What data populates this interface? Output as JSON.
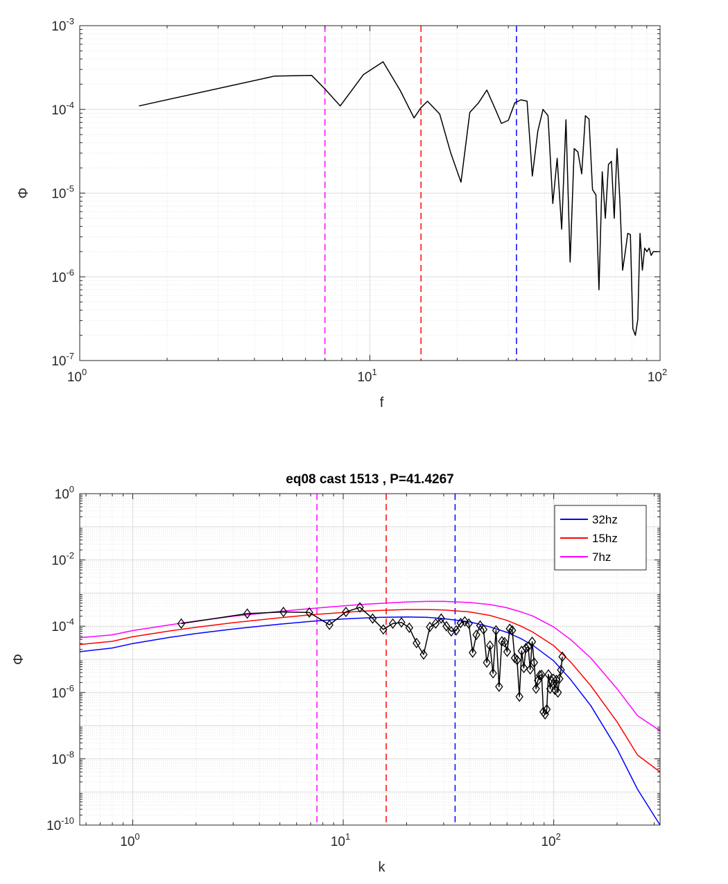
{
  "chart_data": [
    {
      "type": "line",
      "title": "",
      "xlabel": "f",
      "ylabel": "Φ",
      "xscale": "log",
      "yscale": "log",
      "xlim": [
        1,
        100
      ],
      "ylim": [
        1e-07,
        0.001
      ],
      "grid": true,
      "x_ticks": [
        {
          "base": "10",
          "exp": "0"
        },
        {
          "base": "10",
          "exp": "1"
        },
        {
          "base": "10",
          "exp": "2"
        }
      ],
      "y_ticks": [
        {
          "base": "10",
          "exp": "-7"
        },
        {
          "base": "10",
          "exp": "-6"
        },
        {
          "base": "10",
          "exp": "-5"
        },
        {
          "base": "10",
          "exp": "-4"
        },
        {
          "base": "10",
          "exp": "-3"
        }
      ],
      "vlines": [
        {
          "x": 7.0,
          "color": "#ff00ff",
          "style": "dashed"
        },
        {
          "x": 15.0,
          "color": "#ff0000",
          "style": "dashed"
        },
        {
          "x": 32.0,
          "color": "#0000ff",
          "style": "dashed"
        }
      ],
      "series": [
        {
          "color": "#000000",
          "x": [
            1.6,
            4.7,
            6.3,
            7.0,
            7.9,
            9.5,
            11.1,
            12.7,
            14.2,
            15.0,
            15.8,
            17.4,
            19.0,
            20.6,
            22.1,
            23.7,
            25.3,
            26.9,
            28.4,
            30.0,
            31.6,
            33.2,
            34.8,
            36.3,
            37.9,
            39.5,
            41.1,
            42.7,
            44.2,
            45.8,
            47.4,
            49.0,
            50.6,
            52.1,
            53.7,
            55.3,
            56.9,
            58.5,
            60.1,
            61.6,
            63.2,
            64.8,
            66.4,
            68.0,
            69.5,
            71.1,
            72.7,
            74.3,
            75.9,
            77.4,
            79.0,
            80.6,
            82.2,
            83.8,
            85.3,
            86.9,
            88.5,
            90.1,
            91.7,
            93.2,
            94.8,
            96.4,
            98.0,
            99.6,
            100
          ],
          "y": [
            0.00011,
            0.00025,
            0.000255,
            0.000175,
            0.00011,
            0.00026,
            0.00037,
            0.00017,
            7.9e-05,
            0.000105,
            0.000125,
            8.8e-05,
            3e-05,
            1.35e-05,
            9.2e-05,
            0.00012,
            0.00017,
            0.000105,
            6.8e-05,
            7.4e-05,
            0.00012,
            0.00013,
            0.000125,
            1.6e-05,
            5.5e-05,
            0.0001,
            8.4e-05,
            7.5e-06,
            2.6e-05,
            3.7e-06,
            7.5e-05,
            1.5e-06,
            3.4e-05,
            3.1e-05,
            1.7e-05,
            8.4e-05,
            7.7e-05,
            1.1e-05,
            9.5e-06,
            7e-07,
            1.8e-05,
            5e-06,
            2.2e-05,
            2.4e-05,
            5e-06,
            3.4e-05,
            8e-06,
            1.2e-06,
            2e-06,
            3.3e-06,
            3.2e-06,
            2.4e-07,
            2e-07,
            3.1e-07,
            3.3e-06,
            1.2e-06,
            2.2e-06,
            2e-06,
            2.2e-06,
            1.8e-06,
            2e-06,
            2e-06,
            2e-06,
            2e-06,
            2e-06
          ]
        }
      ]
    },
    {
      "type": "line",
      "title": "eq08 cast 1513 , P=41.4267",
      "xlabel": "k",
      "ylabel": "Φ",
      "xscale": "log",
      "yscale": "log",
      "xlim": [
        0.56,
        320
      ],
      "ylim": [
        1e-10,
        1
      ],
      "grid": true,
      "legend_position": "top-right",
      "x_ticks": [
        {
          "base": "10",
          "exp": "0"
        },
        {
          "base": "10",
          "exp": "1"
        },
        {
          "base": "10",
          "exp": "2"
        }
      ],
      "y_ticks": [
        {
          "base": "10",
          "exp": "-10"
        },
        {
          "base": "10",
          "exp": "-8"
        },
        {
          "base": "10",
          "exp": "-6"
        },
        {
          "base": "10",
          "exp": "-4"
        },
        {
          "base": "10",
          "exp": "-2"
        },
        {
          "base": "10",
          "exp": "0"
        }
      ],
      "vlines": [
        {
          "x": 7.5,
          "color": "#ff00ff",
          "style": "dashed"
        },
        {
          "x": 16.0,
          "color": "#ff0000",
          "style": "dashed"
        },
        {
          "x": 34.0,
          "color": "#0000ff",
          "style": "dashed"
        }
      ],
      "series": [
        {
          "name": "32hz",
          "color": "#0000ff",
          "x": [
            0.56,
            0.8,
            1.0,
            1.5,
            2,
            3,
            4,
            5,
            7,
            10,
            12,
            15,
            20,
            25,
            30,
            40,
            50,
            60,
            70,
            80,
            100,
            120,
            150,
            200,
            250,
            320
          ],
          "y": [
            1.7e-05,
            2.2e-05,
            3e-05,
            4.6e-05,
            6e-05,
            8.2e-05,
            0.0001,
            0.000115,
            0.00014,
            0.000165,
            0.000175,
            0.000185,
            0.00019,
            0.000185,
            0.00017,
            0.000135,
            9.5e-05,
            6.5e-05,
            4.2e-05,
            2.6e-05,
            9e-06,
            2.5e-06,
            4e-07,
            2e-08,
            1.2e-09,
            1e-10
          ]
        },
        {
          "name": "15hz",
          "color": "#ff0000",
          "x": [
            0.56,
            0.8,
            1.0,
            1.5,
            2,
            3,
            4,
            5,
            7,
            10,
            12,
            15,
            20,
            25,
            30,
            40,
            50,
            60,
            70,
            80,
            100,
            120,
            150,
            200,
            250,
            320
          ],
          "y": [
            2.8e-05,
            3.5e-05,
            4.8e-05,
            7.2e-05,
            9.3e-05,
            0.000128,
            0.000155,
            0.00018,
            0.00022,
            0.00026,
            0.00028,
            0.0003,
            0.00032,
            0.00032,
            0.00031,
            0.00027,
            0.00021,
            0.00015,
            0.0001,
            6.5e-05,
            2.6e-05,
            8.5e-06,
            1.6e-06,
            1.3e-07,
            1.3e-08,
            4e-09
          ]
        },
        {
          "name": "7hz",
          "color": "#ff00ff",
          "x": [
            0.56,
            0.8,
            1.0,
            1.5,
            2,
            3,
            4,
            5,
            7,
            10,
            12,
            15,
            20,
            25,
            30,
            40,
            50,
            60,
            70,
            80,
            100,
            120,
            150,
            200,
            250,
            320
          ],
          "y": [
            4.5e-05,
            5.5e-05,
            7.4e-05,
            0.00011,
            0.000143,
            0.0002,
            0.00024,
            0.00028,
            0.00034,
            0.00041,
            0.00045,
            0.00049,
            0.00054,
            0.00056,
            0.00056,
            0.00052,
            0.00045,
            0.00036,
            0.00027,
            0.0002,
            9.5e-05,
            4e-05,
            1.1e-05,
            1.3e-06,
            2e-07,
            7e-08
          ]
        },
        {
          "color": "#000000",
          "marker": "diamond",
          "x": [
            1.7,
            3.5,
            5.2,
            6.9,
            8.6,
            10.3,
            12.0,
            13.8,
            15.5,
            17.2,
            18.9,
            20.6,
            22.3,
            24.1,
            25.8,
            27.5,
            29.2,
            30.9,
            32.6,
            34.4,
            36.1,
            37.8,
            39.5,
            41.2,
            42.9,
            44.7,
            46.4,
            48.1,
            49.8,
            51.5,
            53.2,
            55.0,
            56.7,
            58.4,
            60.1,
            61.8,
            63.5,
            65.3,
            67.0,
            68.7,
            70.4,
            72.1,
            73.8,
            75.6,
            77.3,
            79.0,
            80.7,
            82.4,
            84.1,
            85.9,
            87.6,
            89.3,
            91.0,
            92.7,
            94.4,
            96.2,
            97.9,
            99.6,
            101.3,
            103.0,
            104.7,
            106.5,
            108.2,
            109.9
          ],
          "y": [
            0.00012,
            0.00024,
            0.00027,
            0.00026,
            0.00011,
            0.00027,
            0.00037,
            0.00017,
            8e-05,
            0.00012,
            0.00013,
            9e-05,
            3.1e-05,
            1.4e-05,
            9.5e-05,
            0.00012,
            0.00017,
            0.0001,
            7e-05,
            7.5e-05,
            0.000125,
            0.00014,
            0.00012,
            1.6e-05,
            5.5e-05,
            0.000105,
            8e-05,
            8e-06,
            2.6e-05,
            3.8e-06,
            7.5e-05,
            1.5e-06,
            3.5e-05,
            3.3e-05,
            1.7e-05,
            8.4e-05,
            7.5e-05,
            1.1e-05,
            9.5e-06,
            7.5e-07,
            1.8e-05,
            5.5e-06,
            2.2e-05,
            2.4e-05,
            5e-06,
            3.4e-05,
            8e-06,
            1.3e-06,
            2.3e-06,
            3.3e-06,
            3.4e-06,
            2.6e-07,
            2.2e-07,
            3.1e-07,
            3.5e-06,
            1.3e-06,
            2.2e-06,
            2.6e-06,
            1.2e-06,
            2.4e-06,
            1e-06,
            2.6e-06,
            4.8e-06,
            1.2e-05
          ]
        }
      ]
    }
  ]
}
